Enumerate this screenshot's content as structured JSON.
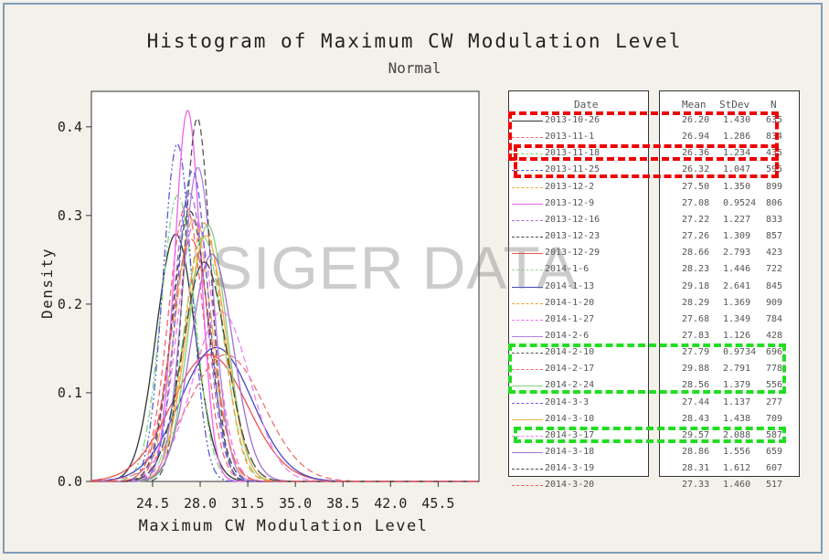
{
  "chart_data": {
    "type": "line",
    "title": "Histogram of Maximum CW Modulation Level",
    "subtitle": "Normal",
    "xlabel": "Maximum CW Modulation Level",
    "ylabel": "Density",
    "xlim": [
      20.0,
      48.5
    ],
    "ylim": [
      0,
      0.44
    ],
    "xticks": [
      "24.5",
      "28.0",
      "31.5",
      "35.0",
      "38.5",
      "42.0",
      "45.5"
    ],
    "yticks": [
      "0.0",
      "0.1",
      "0.2",
      "0.3",
      "0.4"
    ],
    "legend_headers": {
      "date": "Date",
      "mean": "Mean",
      "stdev": "StDev",
      "n": "N"
    },
    "series": [
      {
        "name": "2013-10-26",
        "mean": "26.20",
        "stdev": "1.430",
        "n": "635",
        "color": "#333333",
        "dash": "solid"
      },
      {
        "name": "2013-11-1",
        "mean": "26.94",
        "stdev": "1.286",
        "n": "834",
        "color": "#f06a6a",
        "dash": "dash"
      },
      {
        "name": "2013-11-18",
        "mean": "26.36",
        "stdev": "1.234",
        "n": "435",
        "color": "#7ed67e",
        "dash": "dashdot"
      },
      {
        "name": "2013-11-25",
        "mean": "26.32",
        "stdev": "1.047",
        "n": "595",
        "color": "#5a5ad6",
        "dash": "dashdotdot"
      },
      {
        "name": "2013-12-2",
        "mean": "27.50",
        "stdev": "1.350",
        "n": "899",
        "color": "#f0b040",
        "dash": "longdash"
      },
      {
        "name": "2013-12-9",
        "mean": "27.08",
        "stdev": "0.9524",
        "n": "806",
        "color": "#f060f0",
        "dash": "solid"
      },
      {
        "name": "2013-12-16",
        "mean": "27.22",
        "stdev": "1.227",
        "n": "833",
        "color": "#a070d6",
        "dash": "dash"
      },
      {
        "name": "2013-12-23",
        "mean": "27.26",
        "stdev": "1.309",
        "n": "857",
        "color": "#444444",
        "dash": "dash"
      },
      {
        "name": "2013-12-29",
        "mean": "28.66",
        "stdev": "2.793",
        "n": "423",
        "color": "#f05050",
        "dash": "solid"
      },
      {
        "name": "2014-1-6",
        "mean": "28.23",
        "stdev": "1.446",
        "n": "722",
        "color": "#90e090",
        "dash": "longdash"
      },
      {
        "name": "2014-1-13",
        "mean": "29.18",
        "stdev": "2.641",
        "n": "845",
        "color": "#4646c8",
        "dash": "solid"
      },
      {
        "name": "2014-1-20",
        "mean": "28.29",
        "stdev": "1.369",
        "n": "909",
        "color": "#f0a030",
        "dash": "dash"
      },
      {
        "name": "2014-1-27",
        "mean": "27.68",
        "stdev": "1.349",
        "n": "784",
        "color": "#f070f0",
        "dash": "dash"
      },
      {
        "name": "2014-2-6",
        "mean": "27.83",
        "stdev": "1.126",
        "n": "428",
        "color": "#b080e0",
        "dash": "solid"
      },
      {
        "name": "2014-2-10",
        "mean": "27.79",
        "stdev": "0.9734",
        "n": "696",
        "color": "#555555",
        "dash": "dash"
      },
      {
        "name": "2014-2-17",
        "mean": "29.88",
        "stdev": "2.791",
        "n": "778",
        "color": "#f07070",
        "dash": "dash"
      },
      {
        "name": "2014-2-24",
        "mean": "28.56",
        "stdev": "1.379",
        "n": "556",
        "color": "#80d080",
        "dash": "solid"
      },
      {
        "name": "2014-3-3",
        "mean": "27.44",
        "stdev": "1.137",
        "n": "277",
        "color": "#6060e0",
        "dash": "dash"
      },
      {
        "name": "2014-3-10",
        "mean": "28.43",
        "stdev": "1.438",
        "n": "709",
        "color": "#f0b050",
        "dash": "solid"
      },
      {
        "name": "2014-3-17",
        "mean": "29.57",
        "stdev": "2.088",
        "n": "587",
        "color": "#f080f0",
        "dash": "dash"
      },
      {
        "name": "2014-3-18",
        "mean": "28.86",
        "stdev": "1.556",
        "n": "659",
        "color": "#a070d0",
        "dash": "solid"
      },
      {
        "name": "2014-3-19",
        "mean": "28.31",
        "stdev": "1.612",
        "n": "607",
        "color": "#444444",
        "dash": "longdash"
      },
      {
        "name": "2014-3-20",
        "mean": "27.33",
        "stdev": "1.460",
        "n": "517",
        "color": "#f06060",
        "dash": "longdash"
      }
    ],
    "highlights": [
      {
        "color": "#ee0000",
        "rows": [
          0,
          2
        ]
      },
      {
        "color": "#ee0000",
        "rows": [
          2,
          3
        ]
      },
      {
        "color": "#22dd22",
        "rows": [
          14,
          16
        ]
      },
      {
        "color": "#22dd22",
        "rows": [
          19,
          19
        ]
      }
    ]
  },
  "watermark": "SIGER DATA"
}
